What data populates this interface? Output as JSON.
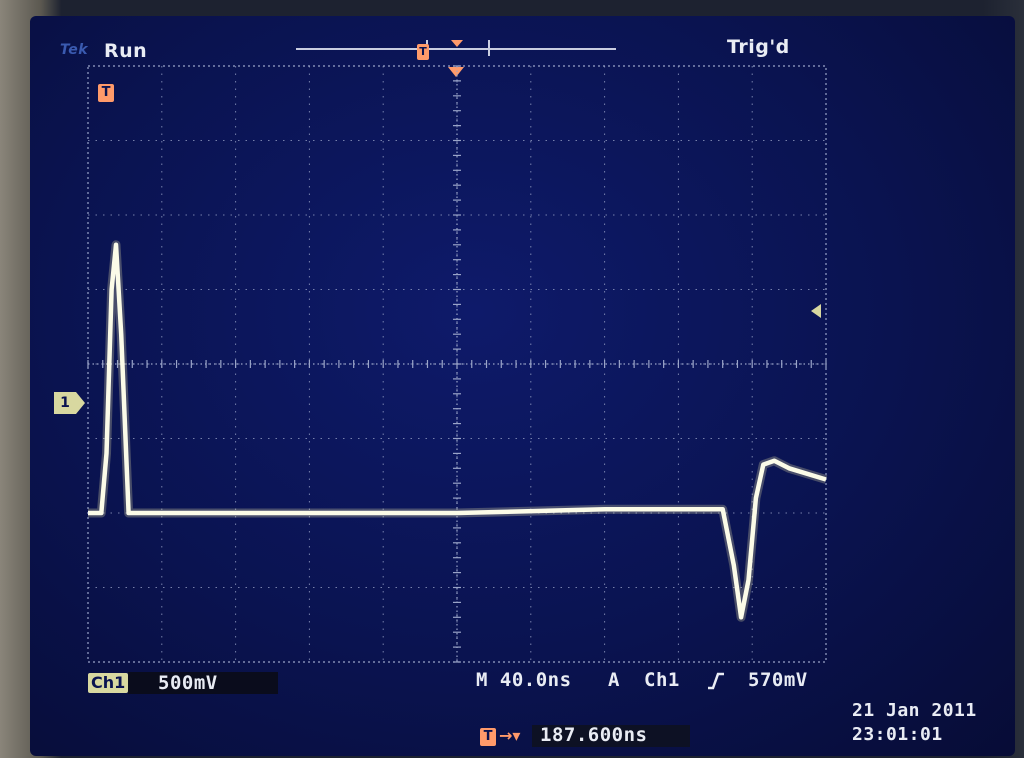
{
  "status": {
    "brand": "Tek",
    "run_state": "Run",
    "trigger_state": "Trig'd"
  },
  "markers": {
    "trigger_marker": "T",
    "ch1_ground_marker": "1",
    "trigger_level_arrow": "arrow-left-icon"
  },
  "channel": {
    "tag": "Ch1",
    "scale": "500mV"
  },
  "timebase": {
    "scale": "M 40.0ns"
  },
  "trigger": {
    "mode": "A",
    "source": "Ch1",
    "slope_icon": "rising-edge-icon",
    "level": "570mV",
    "position_icon": "T",
    "position_value": "187.600ns"
  },
  "datetime": {
    "date": "21 Jan  2011",
    "time": "23:01:01"
  },
  "colors": {
    "trace": "#fbfbe8",
    "grid": "#9aa4c8",
    "ch1": "#d8d8a0",
    "trigger": "#ff9a6a",
    "screen": "#0a1350"
  },
  "chart_data": {
    "type": "line",
    "title": "",
    "xlabel": "",
    "ylabel": "",
    "x_divisions": 10,
    "y_divisions": 8,
    "xlim": [
      0,
      10
    ],
    "ylim": [
      -4,
      4
    ],
    "series": [
      {
        "x": [
          0.0,
          0.18,
          0.25,
          0.32,
          0.38,
          0.45,
          0.55,
          1.0,
          3.0,
          5.0,
          7.0,
          8.6,
          8.75,
          8.85,
          8.95,
          9.05,
          9.15,
          9.3,
          9.5,
          10.0
        ],
        "y": [
          -2.0,
          -2.0,
          -1.2,
          1.0,
          1.6,
          0.4,
          -2.0,
          -2.0,
          -2.0,
          -2.0,
          -1.95,
          -1.95,
          -2.7,
          -3.4,
          -2.9,
          -1.8,
          -1.35,
          -1.3,
          -1.4,
          -1.55
        ]
      }
    ]
  }
}
